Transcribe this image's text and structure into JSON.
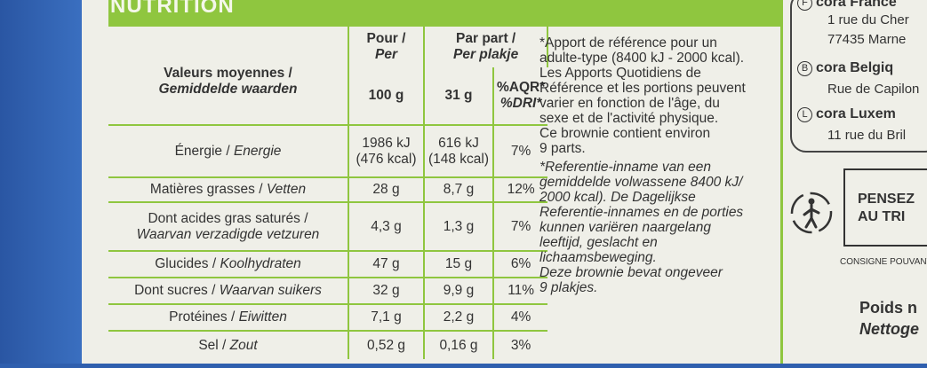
{
  "header": {
    "title": "NUTRITION"
  },
  "table": {
    "head": {
      "valeurs_fr": "Valeurs moyennes /",
      "valeurs_nl": "Gemiddelde waarden",
      "pour_fr": "Pour /",
      "pour_nl": "Per",
      "pour_qty": "100 g",
      "part_fr": "Par part /",
      "part_nl": "Per plakje",
      "part_qty": "31 g",
      "aqr_fr": "%AQR*",
      "aqr_nl": "%DRI*"
    },
    "rows": [
      {
        "fr": "Énergie / ",
        "nl": "Energie",
        "per100": "1986 kJ",
        "per100b": "(476 kcal)",
        "part": "616 kJ",
        "partb": "(148 kcal)",
        "aqr": "7%"
      },
      {
        "fr": "Matières grasses / ",
        "nl": "Vetten",
        "per100": "28 g",
        "part": "8,7 g",
        "aqr": "12%"
      },
      {
        "fr": "Dont acides gras saturés /",
        "nl": "Waarvan verzadigde vetzuren",
        "per100": "4,3 g",
        "part": "1,3 g",
        "aqr": "7%"
      },
      {
        "fr": "Glucides / ",
        "nl": "Koolhydraten",
        "per100": "47 g",
        "part": "15 g",
        "aqr": "6%"
      },
      {
        "fr": "Dont sucres / ",
        "nl": "Waarvan suikers",
        "per100": "32 g",
        "part": "9,9 g",
        "aqr": "11%"
      },
      {
        "fr": "Protéines / ",
        "nl": "Eiwitten",
        "per100": "7,1 g",
        "part": "2,2 g",
        "aqr": "4%"
      },
      {
        "fr": "Sel / ",
        "nl": "Zout",
        "per100": "0,52 g",
        "part": "0,16 g",
        "aqr": "3%"
      }
    ]
  },
  "notes": {
    "fr": [
      "*Apport de référence pour un",
      "adulte-type (8400 kJ - 2000 kcal).",
      "Les Apports Quotidiens de",
      "Référence et les portions peuvent",
      "varier en fonction de l'âge, du",
      "sexe et de l'activité physique.",
      "Ce brownie contient environ",
      "9 parts."
    ],
    "nl": [
      "*Referentie-inname van een",
      "gemiddelde volwassene 8400 kJ/",
      "2000 kcal). De Dagelijkse",
      "Referentie-innames en de porties",
      "kunnen variëren naargelang",
      "leeftijd, geslacht en",
      "lichaamsbeweging.",
      "Deze brownie bevat ongeveer",
      "9 plakjes."
    ]
  },
  "addresses": [
    {
      "letter": "F",
      "name": "cora France",
      "line": "1 rue du Cher",
      "line2": "77435 Marne"
    },
    {
      "letter": "B",
      "name": "cora Belgiq",
      "line": "Rue de Capilon"
    },
    {
      "letter": "L",
      "name": "cora Luxem",
      "line": "11 rue du Bril"
    }
  ],
  "tri": {
    "line1": "PENSEZ",
    "line2": "AU TRI",
    "consigne": "CONSIGNE POUVANT"
  },
  "poids": {
    "line1": "Poids n",
    "line2": "Nettoge"
  },
  "colors": {
    "accent": "#8fc63f",
    "background": "#efefe8",
    "edge": "#2f5fae"
  }
}
